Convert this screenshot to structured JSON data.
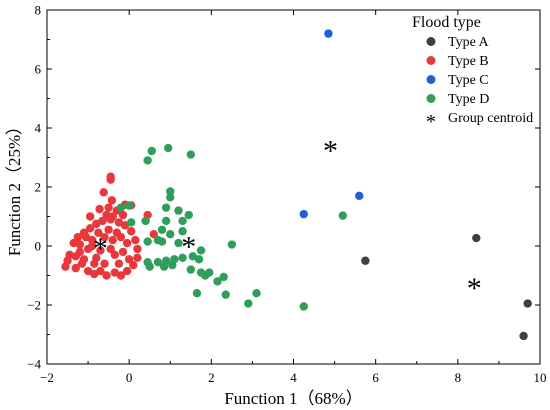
{
  "chart_data": {
    "type": "scatter",
    "xlabel": "Function 1（68%）",
    "ylabel": "Function 2（25%）",
    "xlim": [
      -2,
      10
    ],
    "ylim": [
      -4,
      8
    ],
    "xticks": [
      -2,
      0,
      2,
      4,
      6,
      8,
      10
    ],
    "yticks": [
      -4,
      -2,
      0,
      2,
      4,
      6,
      8
    ],
    "grid": false,
    "legend": {
      "title": "Flood type",
      "placement": "top-right",
      "centroid_label": "Group centroid",
      "centroid_symbol": "*"
    },
    "series": [
      {
        "name": "Type A",
        "color": "#404040",
        "points": [
          [
            5.75,
            -0.5
          ],
          [
            8.45,
            0.27
          ],
          [
            9.7,
            -1.95
          ],
          [
            9.6,
            -3.05
          ]
        ],
        "centroid": [
          8.4,
          -1.35
        ]
      },
      {
        "name": "Type B",
        "color": "#e8383b",
        "points": [
          [
            -0.45,
            2.35
          ],
          [
            -0.45,
            2.25
          ],
          [
            -0.62,
            1.82
          ],
          [
            -0.42,
            1.55
          ],
          [
            -0.5,
            1.3
          ],
          [
            -0.3,
            1.2
          ],
          [
            -0.72,
            1.25
          ],
          [
            -0.55,
            1.05
          ],
          [
            -0.95,
            1.0
          ],
          [
            -0.4,
            1.0
          ],
          [
            -0.1,
            1.4
          ],
          [
            0.05,
            1.38
          ],
          [
            -0.15,
            1.05
          ],
          [
            0.45,
            1.05
          ],
          [
            0.6,
            0.4
          ],
          [
            -1.5,
            -0.5
          ],
          [
            -1.55,
            -0.7
          ],
          [
            -1.45,
            -0.3
          ],
          [
            -1.3,
            -0.75
          ],
          [
            -1.2,
            -0.2
          ],
          [
            -1.35,
            0.1
          ],
          [
            -1.1,
            0.45
          ],
          [
            -1.15,
            -0.6
          ],
          [
            -1.0,
            -0.85
          ],
          [
            -0.85,
            -0.95
          ],
          [
            -0.7,
            -0.85
          ],
          [
            -0.55,
            -1.0
          ],
          [
            -0.35,
            -0.9
          ],
          [
            -0.2,
            -1.0
          ],
          [
            -0.05,
            -0.85
          ],
          [
            0.1,
            -0.65
          ],
          [
            0.2,
            -0.4
          ],
          [
            0.2,
            -0.1
          ],
          [
            0.15,
            0.2
          ],
          [
            0.05,
            0.5
          ],
          [
            -0.1,
            0.7
          ],
          [
            -0.25,
            0.8
          ],
          [
            -0.45,
            0.9
          ],
          [
            -0.65,
            0.85
          ],
          [
            -0.8,
            0.75
          ],
          [
            -0.95,
            0.6
          ],
          [
            -1.05,
            0.3
          ],
          [
            -1.2,
            0.05
          ],
          [
            -1.0,
            -0.1
          ],
          [
            -0.9,
            0.2
          ],
          [
            -0.8,
            -0.4
          ],
          [
            -0.7,
            -0.15
          ],
          [
            -0.6,
            0.3
          ],
          [
            -0.5,
            0.55
          ],
          [
            -0.4,
            0.2
          ],
          [
            -0.35,
            -0.3
          ],
          [
            -0.25,
            -0.6
          ],
          [
            -0.15,
            -0.2
          ],
          [
            -0.05,
            0.1
          ],
          [
            0.0,
            -0.45
          ],
          [
            -0.3,
            0.45
          ],
          [
            -0.6,
            -0.6
          ],
          [
            -0.85,
            -0.6
          ],
          [
            -1.1,
            -0.45
          ],
          [
            -1.3,
            -0.35
          ],
          [
            -0.45,
            -0.1
          ],
          [
            -0.2,
            0.3
          ],
          [
            -0.75,
            0.45
          ],
          [
            -0.9,
            0.0
          ],
          [
            -1.25,
            0.3
          ]
        ],
        "centroid": [
          -0.7,
          0.0
        ]
      },
      {
        "name": "Type C",
        "color": "#1f5fd6",
        "points": [
          [
            4.85,
            7.2
          ],
          [
            5.6,
            1.7
          ],
          [
            4.25,
            1.08
          ]
        ],
        "centroid": [
          4.9,
          3.3
        ]
      },
      {
        "name": "Type D",
        "color": "#2e9f5a",
        "points": [
          [
            0.95,
            3.32
          ],
          [
            0.55,
            3.22
          ],
          [
            1.5,
            3.1
          ],
          [
            0.45,
            2.9
          ],
          [
            1.0,
            1.85
          ],
          [
            1.0,
            1.65
          ],
          [
            0.0,
            1.37
          ],
          [
            -0.2,
            1.3
          ],
          [
            0.9,
            1.3
          ],
          [
            1.2,
            1.2
          ],
          [
            1.45,
            1.05
          ],
          [
            0.9,
            0.85
          ],
          [
            1.3,
            0.85
          ],
          [
            0.4,
            0.85
          ],
          [
            0.05,
            0.8
          ],
          [
            0.8,
            0.55
          ],
          [
            1.0,
            0.4
          ],
          [
            1.3,
            0.5
          ],
          [
            0.7,
            0.2
          ],
          [
            0.8,
            0.15
          ],
          [
            0.45,
            0.15
          ],
          [
            1.2,
            0.1
          ],
          [
            1.75,
            -0.15
          ],
          [
            2.5,
            0.05
          ],
          [
            1.55,
            -0.35
          ],
          [
            0.45,
            -0.55
          ],
          [
            0.7,
            -0.55
          ],
          [
            0.9,
            -0.5
          ],
          [
            1.1,
            -0.45
          ],
          [
            1.3,
            -0.4
          ],
          [
            1.7,
            -0.45
          ],
          [
            0.5,
            -0.7
          ],
          [
            0.85,
            -0.7
          ],
          [
            1.05,
            -0.65
          ],
          [
            1.5,
            -0.8
          ],
          [
            1.75,
            -0.9
          ],
          [
            1.95,
            -0.9
          ],
          [
            1.85,
            -1.0
          ],
          [
            2.3,
            -1.05
          ],
          [
            2.15,
            -1.2
          ],
          [
            1.65,
            -1.6
          ],
          [
            2.35,
            -1.65
          ],
          [
            2.9,
            -1.95
          ],
          [
            3.1,
            -1.6
          ],
          [
            4.25,
            -2.05
          ],
          [
            5.2,
            1.03
          ]
        ],
        "centroid": [
          1.45,
          0.05
        ]
      }
    ]
  }
}
